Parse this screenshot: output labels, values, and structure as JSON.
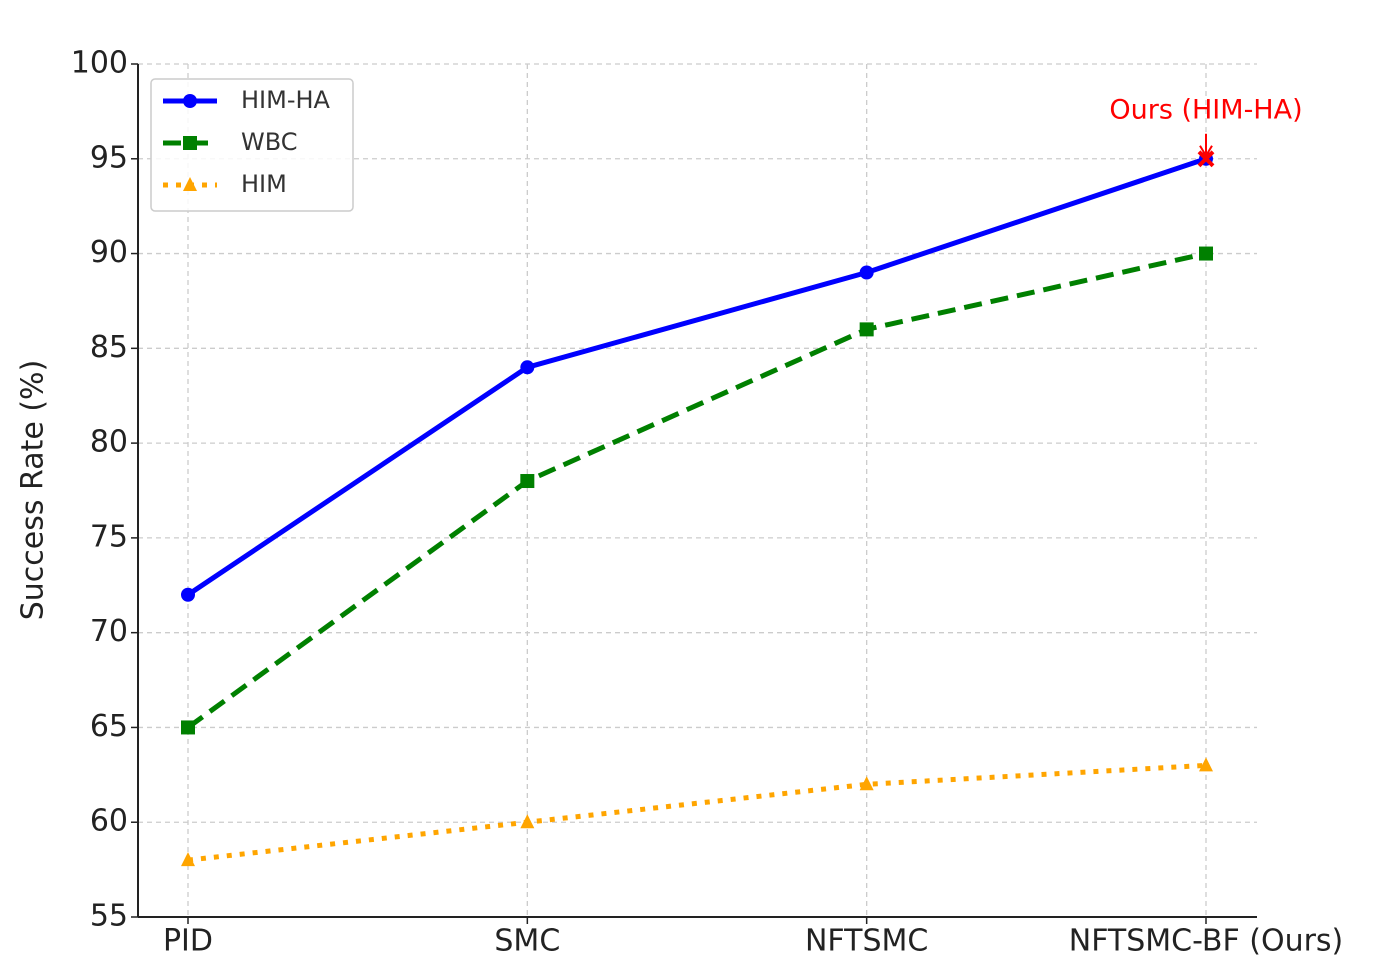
{
  "chart_data": {
    "type": "line",
    "ylabel": "Success Rate (%)",
    "categories": [
      "PID",
      "SMC",
      "NFTSMC",
      "NFTSMC-BF (Ours)"
    ],
    "series": [
      {
        "name": "HIM-HA",
        "color": "#0000ff",
        "marker": "circle",
        "linestyle": "solid",
        "values": [
          72,
          84,
          89,
          95
        ]
      },
      {
        "name": "WBC",
        "color": "#008000",
        "marker": "square",
        "linestyle": "dashed",
        "values": [
          65,
          78,
          86,
          90
        ]
      },
      {
        "name": "HIM",
        "color": "#ffa500",
        "marker": "triangle",
        "linestyle": "dotted",
        "values": [
          58,
          60,
          62,
          63
        ]
      }
    ],
    "annotation": {
      "text": "Ours (HIM-HA)",
      "color": "#ff0000"
    },
    "ylim": [
      55,
      100
    ],
    "yticks": [
      55,
      60,
      65,
      70,
      75,
      80,
      85,
      90,
      95,
      100
    ],
    "grid": true,
    "legend": "upper left"
  }
}
